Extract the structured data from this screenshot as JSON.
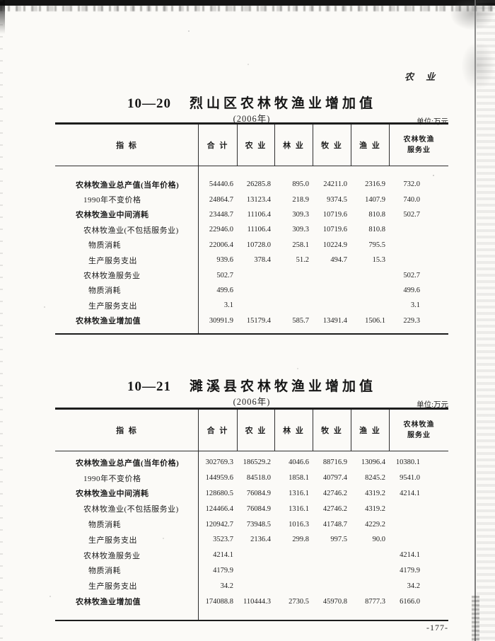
{
  "page": {
    "chapter_header": "农  业",
    "page_number": "-177-",
    "colors": {
      "paper": "#fbfaf7",
      "ink": "#1f1f1f",
      "scan_band": "#141414"
    }
  },
  "tables": [
    {
      "table_no": "10—20",
      "title": "烈山区农林牧渔业增加值",
      "subtitle": "(2006年)",
      "unit_label": "单位:万元",
      "columns": [
        "指    标",
        "合  计",
        "农  业",
        "林  业",
        "牧  业",
        "渔  业",
        "农林牧渔\n服务业"
      ],
      "rows": [
        {
          "label": "农林牧渔业总产值(当年价格)",
          "indent": 0,
          "bold": true,
          "values": [
            "54440.6",
            "26285.8",
            "895.0",
            "24211.0",
            "2316.9",
            "732.0"
          ]
        },
        {
          "label": "1990年不变价格",
          "indent": 1,
          "bold": false,
          "values": [
            "24864.7",
            "13123.4",
            "218.9",
            "9374.5",
            "1407.9",
            "740.0"
          ]
        },
        {
          "label": "农林牧渔业中间消耗",
          "indent": 0,
          "bold": true,
          "values": [
            "23448.7",
            "11106.4",
            "309.3",
            "10719.6",
            "810.8",
            "502.7"
          ]
        },
        {
          "label": "农林牧渔业(不包括服务业)",
          "indent": 1,
          "bold": false,
          "values": [
            "22946.0",
            "11106.4",
            "309.3",
            "10719.6",
            "810.8",
            ""
          ]
        },
        {
          "label": "物质消耗",
          "indent": 2,
          "bold": false,
          "values": [
            "22006.4",
            "10728.0",
            "258.1",
            "10224.9",
            "795.5",
            ""
          ]
        },
        {
          "label": "生产服务支出",
          "indent": 2,
          "bold": false,
          "values": [
            "939.6",
            "378.4",
            "51.2",
            "494.7",
            "15.3",
            ""
          ]
        },
        {
          "label": "农林牧渔服务业",
          "indent": 1,
          "bold": false,
          "values": [
            "502.7",
            "",
            "",
            "",
            "",
            "502.7"
          ]
        },
        {
          "label": "物质消耗",
          "indent": 2,
          "bold": false,
          "values": [
            "499.6",
            "",
            "",
            "",
            "",
            "499.6"
          ]
        },
        {
          "label": "生产服务支出",
          "indent": 2,
          "bold": false,
          "values": [
            "3.1",
            "",
            "",
            "",
            "",
            "3.1"
          ]
        },
        {
          "label": "农林牧渔业增加值",
          "indent": 0,
          "bold": true,
          "values": [
            "30991.9",
            "15179.4",
            "585.7",
            "13491.4",
            "1506.1",
            "229.3"
          ]
        }
      ]
    },
    {
      "table_no": "10—21",
      "title": "濉溪县农林牧渔业增加值",
      "subtitle": "(2006年)",
      "unit_label": "单位:万元",
      "columns": [
        "指    标",
        "合  计",
        "农  业",
        "林  业",
        "牧  业",
        "渔  业",
        "农林牧渔\n服务业"
      ],
      "rows": [
        {
          "label": "农林牧渔业总产值(当年价格)",
          "indent": 0,
          "bold": true,
          "values": [
            "302769.3",
            "186529.2",
            "4046.6",
            "88716.9",
            "13096.4",
            "10380.1"
          ]
        },
        {
          "label": "1990年不变价格",
          "indent": 1,
          "bold": false,
          "values": [
            "144959.6",
            "84518.0",
            "1858.1",
            "40797.4",
            "8245.2",
            "9541.0"
          ]
        },
        {
          "label": "农林牧渔业中间消耗",
          "indent": 0,
          "bold": true,
          "values": [
            "128680.5",
            "76084.9",
            "1316.1",
            "42746.2",
            "4319.2",
            "4214.1"
          ]
        },
        {
          "label": "农林牧渔业(不包括服务业)",
          "indent": 1,
          "bold": false,
          "values": [
            "124466.4",
            "76084.9",
            "1316.1",
            "42746.2",
            "4319.2",
            ""
          ]
        },
        {
          "label": "物质消耗",
          "indent": 2,
          "bold": false,
          "values": [
            "120942.7",
            "73948.5",
            "1016.3",
            "41748.7",
            "4229.2",
            ""
          ]
        },
        {
          "label": "生产服务支出",
          "indent": 2,
          "bold": false,
          "values": [
            "3523.7",
            "2136.4",
            "299.8",
            "997.5",
            "90.0",
            ""
          ]
        },
        {
          "label": "农林牧渔服务业",
          "indent": 1,
          "bold": false,
          "values": [
            "4214.1",
            "",
            "",
            "",
            "",
            "4214.1"
          ]
        },
        {
          "label": "物质消耗",
          "indent": 2,
          "bold": false,
          "values": [
            "4179.9",
            "",
            "",
            "",
            "",
            "4179.9"
          ]
        },
        {
          "label": "生产服务支出",
          "indent": 2,
          "bold": false,
          "values": [
            "34.2",
            "",
            "",
            "",
            "",
            "34.2"
          ]
        },
        {
          "label": "农林牧渔业增加值",
          "indent": 0,
          "bold": true,
          "values": [
            "174088.8",
            "110444.3",
            "2730.5",
            "45970.8",
            "8777.3",
            "6166.0"
          ]
        }
      ]
    }
  ]
}
